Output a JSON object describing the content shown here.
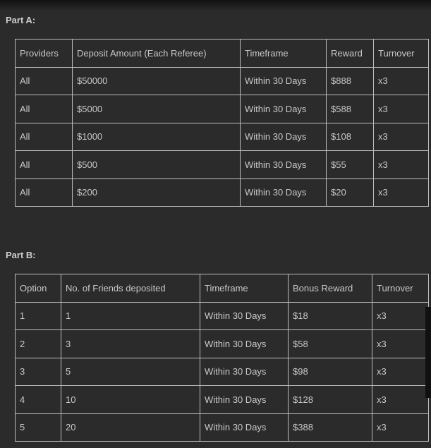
{
  "part_a": {
    "label": "Part A:",
    "headers": [
      "Providers",
      "Deposit Amount (Each Referee)",
      "Timeframe",
      "Reward",
      "Turnover"
    ],
    "rows": [
      [
        "All",
        "$50000",
        "Within 30 Days",
        "$888",
        "x3"
      ],
      [
        "All",
        "$5000",
        "Within 30 Days",
        "$588",
        "x3"
      ],
      [
        "All",
        "$1000",
        "Within 30 Days",
        "$108",
        "x3"
      ],
      [
        "All",
        "$500",
        "Within 30 Days",
        "$55",
        "x3"
      ],
      [
        "All",
        "$200",
        "Within 30 Days",
        "$20",
        "x3"
      ]
    ]
  },
  "part_b": {
    "label": "Part B:",
    "headers": [
      "Option",
      "No. of Friends deposited",
      "Timeframe",
      "Bonus Reward",
      "Turnover"
    ],
    "rows": [
      [
        "1",
        "1",
        "Within 30 Days",
        "$18",
        "x3"
      ],
      [
        "2",
        "3",
        "Within 30 Days",
        "$58",
        "x3"
      ],
      [
        "3",
        "5",
        "Within 30 Days",
        "$98",
        "x3"
      ],
      [
        "4",
        "10",
        "Within 30 Days",
        "$128",
        "x3"
      ],
      [
        "5",
        "20",
        "Within 30 Days",
        "$388",
        "x3"
      ]
    ]
  }
}
